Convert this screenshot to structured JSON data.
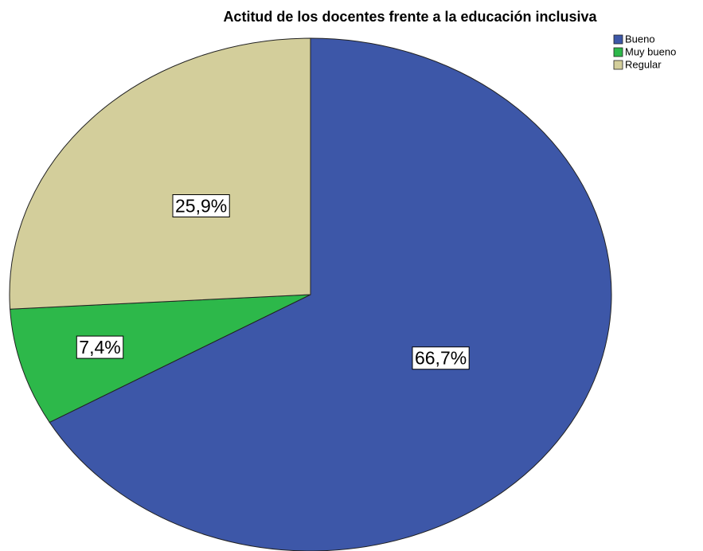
{
  "chart_data": {
    "type": "pie",
    "title": "Actitud de los docentes frente a la educación inclusiva",
    "categories": [
      "Bueno",
      "Muy bueno",
      "Regular"
    ],
    "values": [
      66.7,
      7.4,
      25.9
    ],
    "value_labels": [
      "66,7%",
      "7,4%",
      "25,9%"
    ],
    "colors": [
      "#3d57a8",
      "#2db84a",
      "#d3ce9b"
    ],
    "legend": "top-right"
  }
}
